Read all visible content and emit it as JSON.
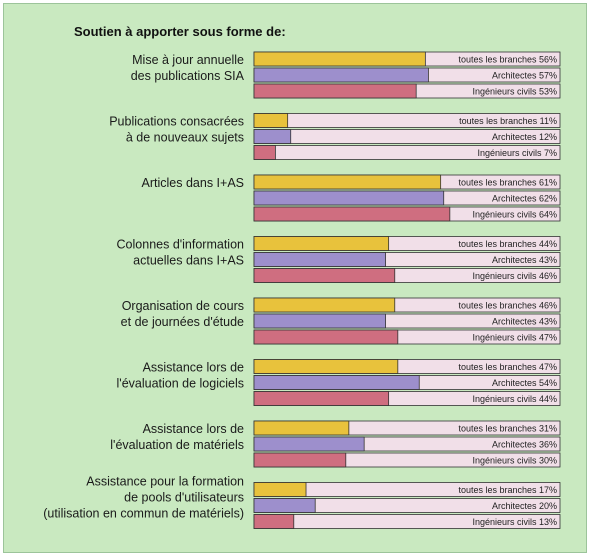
{
  "chart_data": {
    "type": "bar",
    "orientation": "horizontal",
    "title": "Soutien à apporter sous forme de:",
    "series": [
      {
        "name": "toutes les branches",
        "color": "#e8c23c"
      },
      {
        "name": "Architectes",
        "color": "#9d8fcc"
      },
      {
        "name": "Ingénieurs civils",
        "color": "#cf6e80"
      }
    ],
    "xlim": [
      0,
      100
    ],
    "track_color": "#f1dfe8",
    "categories": [
      {
        "lines": [
          "Mise à jour annuelle",
          "des publications SIA"
        ],
        "values": [
          56,
          57,
          53
        ]
      },
      {
        "lines": [
          "Publications consacrées",
          "à de nouveaux sujets"
        ],
        "values": [
          11,
          12,
          7
        ]
      },
      {
        "lines": [
          "Articles dans I+AS"
        ],
        "values": [
          61,
          62,
          64
        ]
      },
      {
        "lines": [
          "Colonnes d'information",
          "actuelles dans I+AS"
        ],
        "values": [
          44,
          43,
          46
        ]
      },
      {
        "lines": [
          "Organisation de cours",
          "et de journées d'étude"
        ],
        "values": [
          46,
          43,
          47
        ]
      },
      {
        "lines": [
          "Assistance lors de",
          "l'évaluation de logiciels"
        ],
        "values": [
          47,
          54,
          44
        ]
      },
      {
        "lines": [
          "Assistance lors de",
          "l'évaluation de matériels"
        ],
        "values": [
          31,
          36,
          30
        ]
      },
      {
        "lines": [
          "Assistance pour la formation",
          "de pools d'utilisateurs",
          "(utilisation en commun de matériels)"
        ],
        "values": [
          17,
          20,
          13
        ]
      }
    ]
  }
}
